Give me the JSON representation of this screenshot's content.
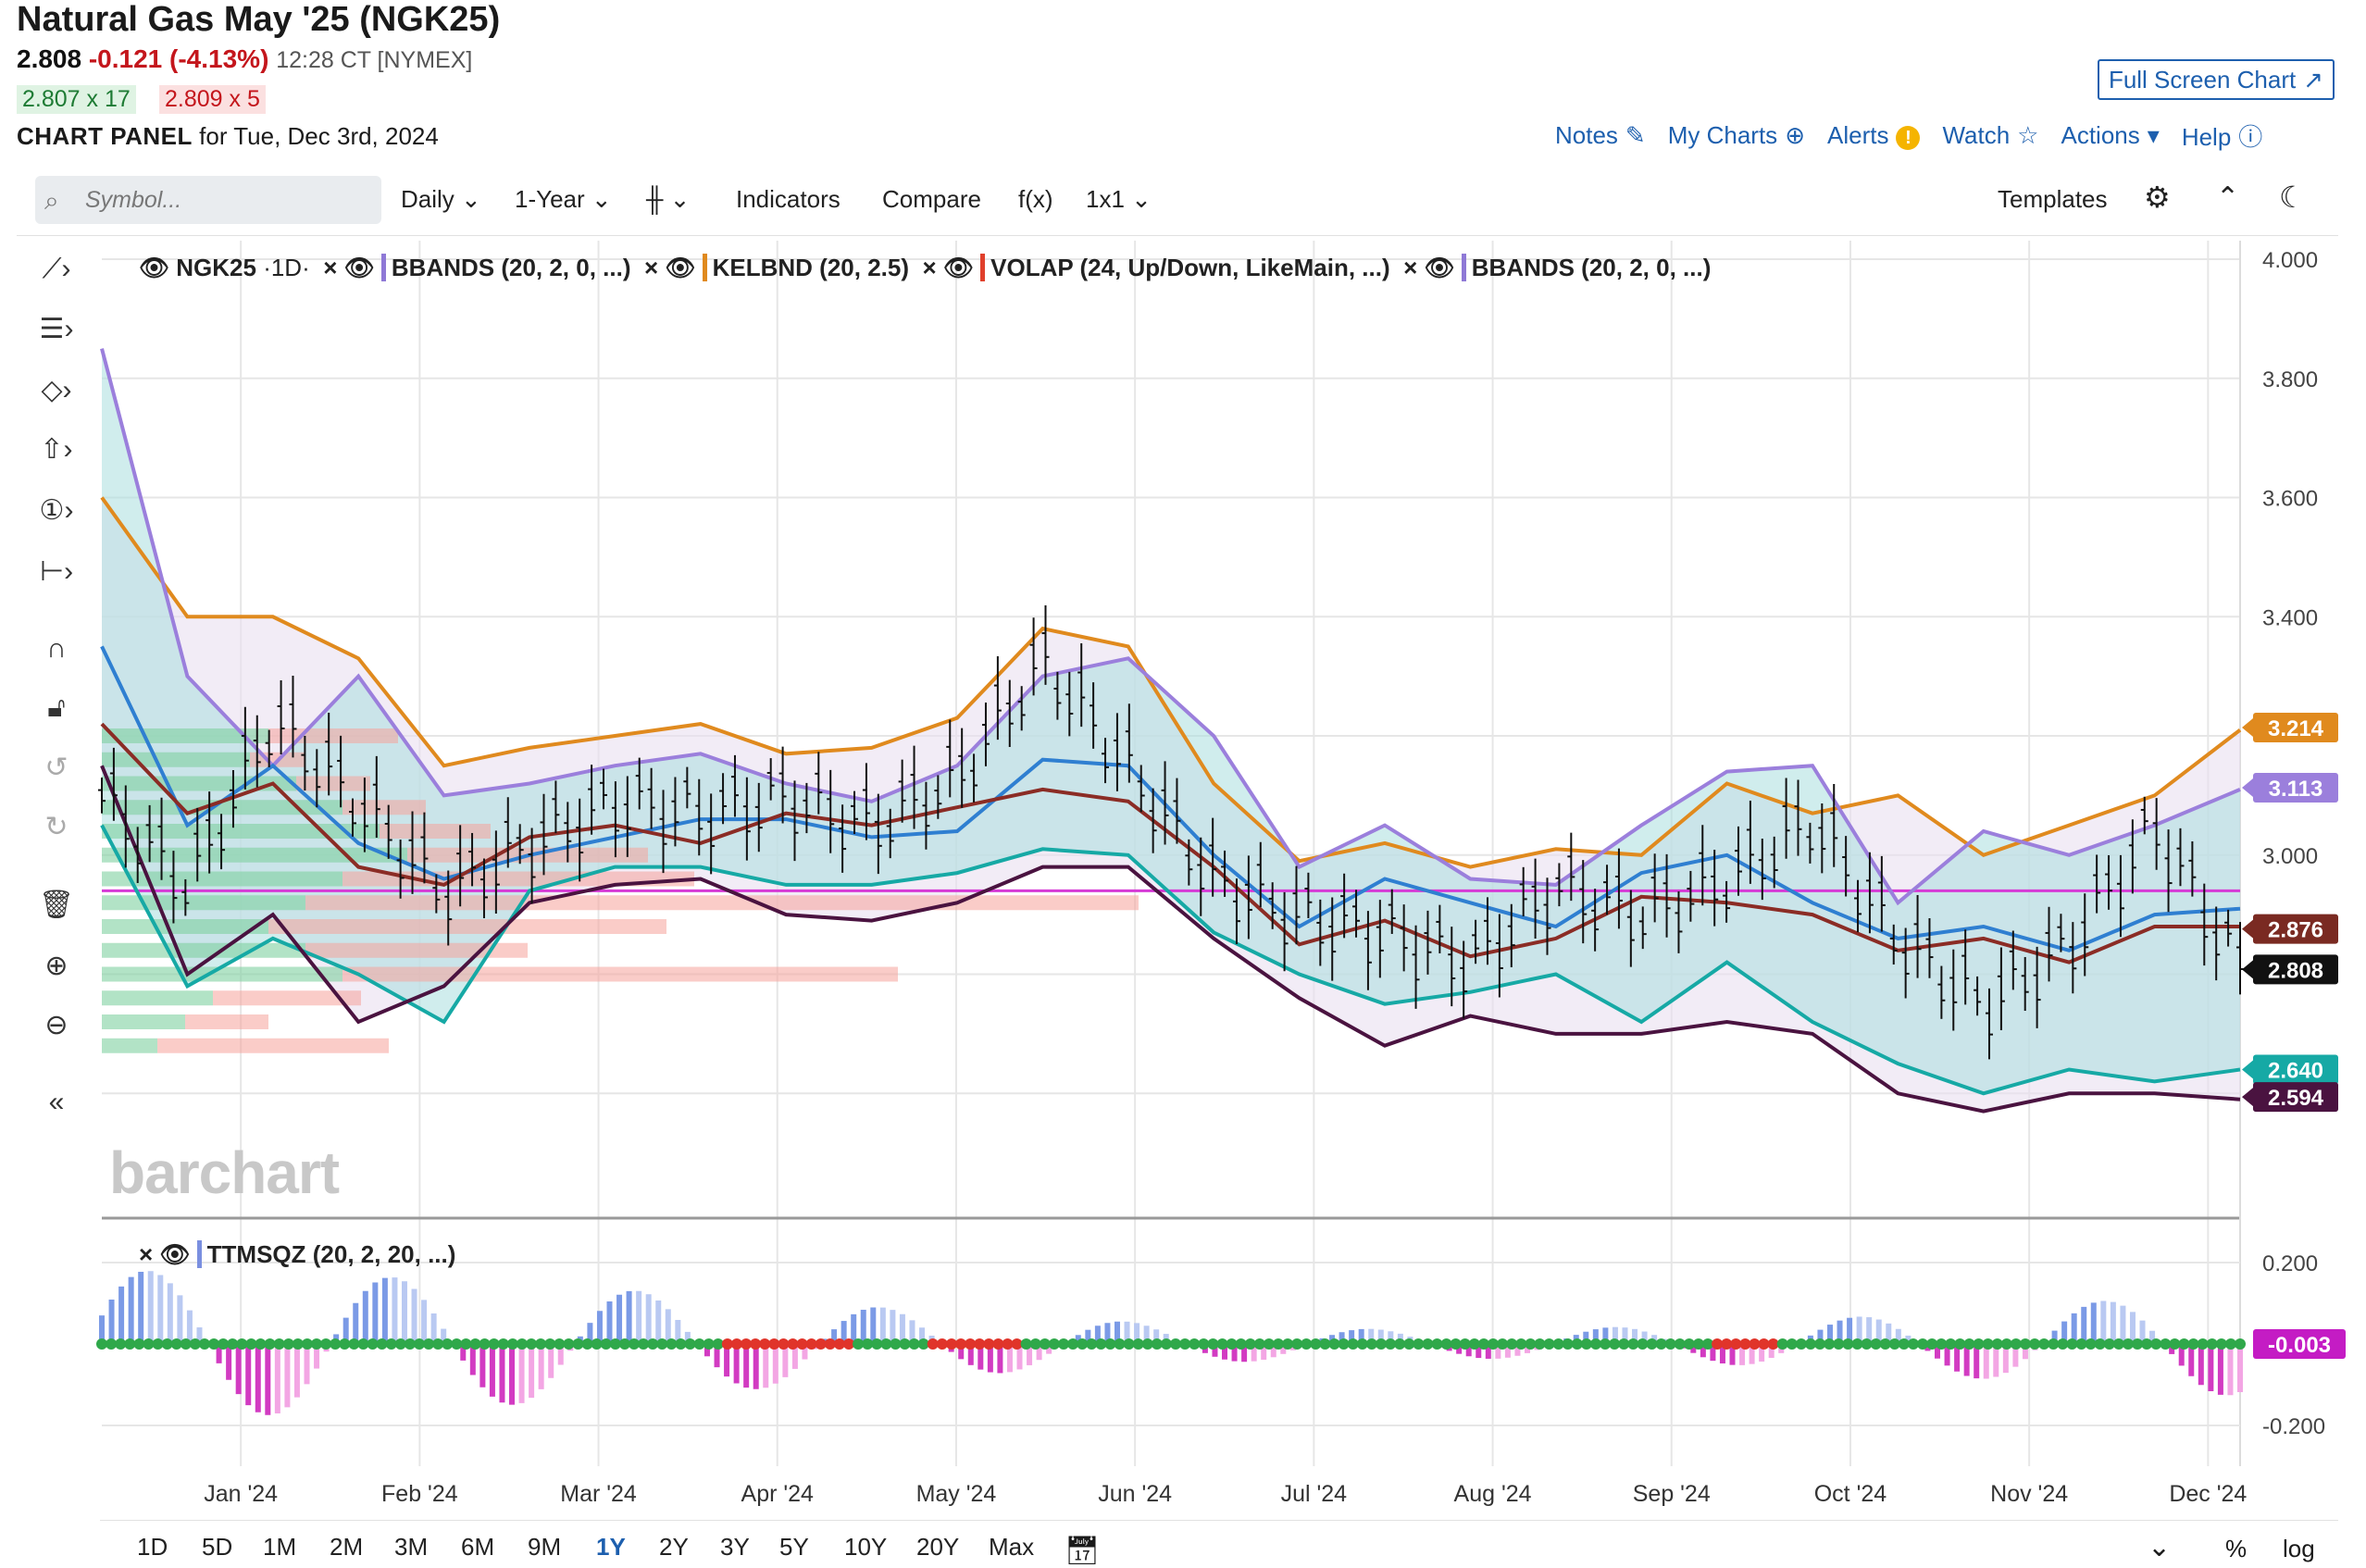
{
  "header": {
    "title": "Natural Gas May '25 (NGK25)",
    "last": "2.808",
    "change": "-0.121 (-4.13%)",
    "time": "12:28 CT [NYMEX]",
    "bid": "2.807 x 17",
    "ask": "2.809 x 5",
    "panel_label": "CHART PANEL",
    "panel_date": "for Tue, Dec 3rd, 2024",
    "full_screen": "Full Screen Chart",
    "links": [
      "Notes",
      "My Charts",
      "Alerts",
      "Watch",
      "Actions",
      "Help"
    ]
  },
  "toolbar": {
    "search_placeholder": "Symbol...",
    "interval": "Daily",
    "range": "1-Year",
    "indicators": "Indicators",
    "compare": "Compare",
    "fx": "f(x)",
    "layout": "1x1",
    "templates": "Templates"
  },
  "legend": {
    "symbol": "NGK25",
    "symbol_suffix": "·1D·",
    "studies": [
      "BBANDS (20, 2, 0, ...)",
      "KELBND (20, 2.5)",
      "VOLAP (24, Up/Down, LikeMain, ...)",
      "BBANDS (20, 2, 0, ...)"
    ],
    "study_colors": [
      "#8f79d6",
      "#e08a1e",
      "#e0402c",
      "#8f79d6"
    ],
    "lower_study": "TTMSQZ (20, 2, 20, ...)",
    "lower_color": "#7a8fe0"
  },
  "watermark": "barchart",
  "timeframes": [
    "1D",
    "5D",
    "1M",
    "2M",
    "3M",
    "6M",
    "9M",
    "1Y",
    "2Y",
    "3Y",
    "5Y",
    "10Y",
    "20Y",
    "Max"
  ],
  "timeframe_active": "1Y",
  "bottom_right": [
    "%",
    "log"
  ],
  "colors": {
    "accent": "#1d5fae",
    "down": "#c4161c",
    "up": "#1e7b34"
  },
  "chart_data": {
    "type": "line",
    "x_labels": [
      "Jan '24",
      "Feb '24",
      "Mar '24",
      "Apr '24",
      "May '24",
      "Jun '24",
      "Jul '24",
      "Aug '24",
      "Sep '24",
      "Oct '24",
      "Nov '24",
      "Dec '24"
    ],
    "ylim": [
      2.4,
      4.0
    ],
    "y_ticks": [
      4.0,
      3.8,
      3.6,
      3.4,
      3.2,
      3.0,
      2.8,
      2.6
    ],
    "y_tick_labels": [
      "4.000",
      "3.800",
      "3.600",
      "3.400",
      "",
      "3.000",
      "",
      ""
    ],
    "price_tags": [
      {
        "value": 3.214,
        "label": "3.214",
        "color": "#e08a1e"
      },
      {
        "value": 3.113,
        "label": "3.113",
        "color": "#9b7fdc"
      },
      {
        "value": 2.876,
        "label": "2.876",
        "color": "#7a2a22"
      },
      {
        "value": 2.808,
        "label": "2.808",
        "color": "#111111"
      },
      {
        "value": 2.64,
        "label": "2.640",
        "color": "#16a9a5"
      },
      {
        "value": 2.594,
        "label": "2.594",
        "color": "#4a1340"
      }
    ],
    "hline": 2.94,
    "t": [
      0,
      0.04,
      0.08,
      0.12,
      0.16,
      0.2,
      0.24,
      0.28,
      0.32,
      0.36,
      0.4,
      0.44,
      0.48,
      0.52,
      0.56,
      0.6,
      0.64,
      0.68,
      0.72,
      0.76,
      0.8,
      0.84,
      0.88,
      0.92,
      0.96,
      1.0
    ],
    "series": [
      {
        "name": "Upper Keltner",
        "color": "#e08a1e",
        "values": [
          3.6,
          3.4,
          3.4,
          3.33,
          3.15,
          3.18,
          3.2,
          3.22,
          3.17,
          3.18,
          3.23,
          3.38,
          3.35,
          3.12,
          2.99,
          3.02,
          2.98,
          3.01,
          3.0,
          3.12,
          3.07,
          3.1,
          3.0,
          3.05,
          3.1,
          3.21
        ]
      },
      {
        "name": "Upper Bollinger",
        "color": "#9b7fdc",
        "values": [
          3.85,
          3.3,
          3.15,
          3.3,
          3.1,
          3.12,
          3.15,
          3.17,
          3.12,
          3.09,
          3.15,
          3.3,
          3.33,
          3.2,
          2.98,
          3.05,
          2.96,
          2.95,
          3.05,
          3.14,
          3.15,
          2.92,
          3.04,
          3.0,
          3.05,
          3.11
        ]
      },
      {
        "name": "Basis",
        "color": "#2f7fd1",
        "values": [
          3.35,
          3.05,
          3.15,
          3.02,
          2.96,
          3.0,
          3.03,
          3.06,
          3.06,
          3.03,
          3.04,
          3.16,
          3.15,
          3.0,
          2.88,
          2.96,
          2.92,
          2.88,
          2.97,
          3.0,
          2.92,
          2.86,
          2.88,
          2.84,
          2.9,
          2.91
        ]
      },
      {
        "name": "Middle",
        "color": "#8b2c25",
        "values": [
          3.22,
          3.07,
          3.12,
          2.98,
          2.95,
          3.03,
          3.05,
          3.02,
          3.07,
          3.05,
          3.08,
          3.11,
          3.09,
          2.98,
          2.85,
          2.89,
          2.83,
          2.86,
          2.93,
          2.92,
          2.9,
          2.84,
          2.86,
          2.82,
          2.88,
          2.88
        ]
      },
      {
        "name": "Lower Keltner",
        "color": "#16a9a5",
        "values": [
          3.05,
          2.78,
          2.86,
          2.8,
          2.72,
          2.94,
          2.98,
          2.98,
          2.95,
          2.95,
          2.97,
          3.01,
          3.0,
          2.87,
          2.8,
          2.75,
          2.77,
          2.8,
          2.72,
          2.82,
          2.72,
          2.65,
          2.6,
          2.64,
          2.62,
          2.64
        ]
      },
      {
        "name": "Lower Bollinger",
        "color": "#4a1340",
        "values": [
          3.15,
          2.8,
          2.9,
          2.72,
          2.78,
          2.92,
          2.95,
          2.96,
          2.9,
          2.89,
          2.92,
          2.98,
          2.98,
          2.86,
          2.76,
          2.68,
          2.73,
          2.7,
          2.7,
          2.72,
          2.7,
          2.6,
          2.57,
          2.6,
          2.6,
          2.59
        ]
      },
      {
        "name": "Price",
        "color": "#111111",
        "values": [
          3.1,
          2.95,
          3.23,
          3.09,
          2.94,
          3.02,
          3.09,
          3.07,
          3.1,
          3.05,
          3.13,
          3.33,
          3.15,
          2.96,
          2.9,
          2.87,
          2.82,
          2.95,
          2.9,
          2.96,
          3.06,
          2.86,
          2.75,
          2.85,
          3.05,
          2.81
        ]
      }
    ],
    "lower_panel": {
      "ylim": [
        -0.3,
        0.3
      ],
      "y_tick_labels": [
        "0.200",
        "-0.200"
      ],
      "last": "-0.003"
    }
  }
}
